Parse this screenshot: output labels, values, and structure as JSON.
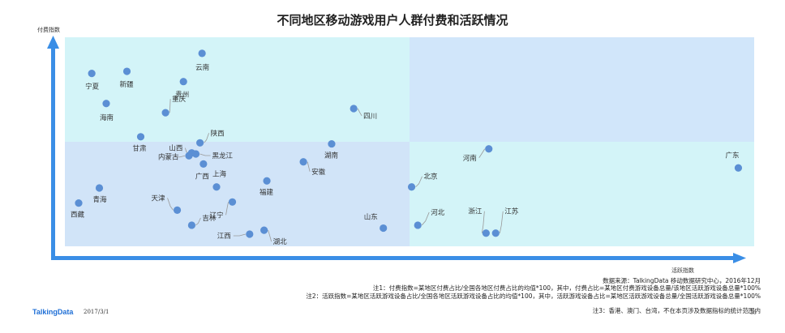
{
  "chart_data": {
    "type": "scatter",
    "title": "不同地区移动游戏用户人群付费和活跃情况",
    "xlabel": "活跃指数",
    "ylabel": "付费指数",
    "xlim": [
      0,
      100
    ],
    "ylim": [
      0,
      100
    ],
    "quadrant_split": {
      "x": 50,
      "y": 50
    },
    "quadrant_colors": {
      "top_left": "#d3f4f8",
      "top_right": "#d1e6fa",
      "bottom_left": "#d1e4f8",
      "bottom_right": "#d3f4f8"
    },
    "grid": false,
    "legend": "none",
    "point_color": "#5b8fd4",
    "axis_color": "#3a8ee6",
    "points": [
      {
        "label": "云南",
        "x": 19.9,
        "y": 92.3
      },
      {
        "label": "宁夏",
        "x": 3.9,
        "y": 82.7
      },
      {
        "label": "新疆",
        "x": 9.0,
        "y": 83.7
      },
      {
        "label": "贵州",
        "x": 17.2,
        "y": 78.8
      },
      {
        "label": "海南",
        "x": 6.0,
        "y": 68.3
      },
      {
        "label": "重庆",
        "x": 14.6,
        "y": 63.9
      },
      {
        "label": "四川",
        "x": 41.9,
        "y": 65.9
      },
      {
        "label": "甘肃",
        "x": 11.0,
        "y": 52.4
      },
      {
        "label": "陕西",
        "x": 19.6,
        "y": 49.5
      },
      {
        "label": "山西",
        "x": 18.4,
        "y": 44.7
      },
      {
        "label": "内蒙古",
        "x": 18.0,
        "y": 43.3
      },
      {
        "label": "黑龙江",
        "x": 19.0,
        "y": 44.2
      },
      {
        "label": "湖南",
        "x": 38.7,
        "y": 49.0
      },
      {
        "label": "河南",
        "x": 61.5,
        "y": 46.6
      },
      {
        "label": "广东",
        "x": 97.7,
        "y": 37.5
      },
      {
        "label": "广西",
        "x": 20.1,
        "y": 39.4
      },
      {
        "label": "安徽",
        "x": 34.6,
        "y": 40.4
      },
      {
        "label": "北京",
        "x": 50.3,
        "y": 28.4
      },
      {
        "label": "福建",
        "x": 29.3,
        "y": 31.3
      },
      {
        "label": "青海",
        "x": 5.0,
        "y": 27.9
      },
      {
        "label": "西藏",
        "x": 2.0,
        "y": 20.7
      },
      {
        "label": "上海",
        "x": 22.0,
        "y": 28.4
      },
      {
        "label": "辽宁",
        "x": 24.3,
        "y": 21.2
      },
      {
        "label": "天津",
        "x": 16.3,
        "y": 17.3
      },
      {
        "label": "吉林",
        "x": 18.4,
        "y": 10.1
      },
      {
        "label": "山东",
        "x": 46.2,
        "y": 8.7
      },
      {
        "label": "河北",
        "x": 51.2,
        "y": 10.1
      },
      {
        "label": "浙江",
        "x": 61.1,
        "y": 6.3
      },
      {
        "label": "江苏",
        "x": 62.5,
        "y": 6.3
      },
      {
        "label": "江西",
        "x": 26.8,
        "y": 5.8
      },
      {
        "label": "湖北",
        "x": 28.9,
        "y": 7.7
      }
    ]
  },
  "source_lines": [
    "数据来源：TalkingData 移动数据研究中心，2016年12月",
    "注1：付费指数=某地区付费占比/全国各地区付费占比的均值*100，其中，付费占比=某地区付费游戏设备总量/该地区活跃游戏设备总量*100%",
    "注2：活跃指数=某地区活跃游戏设备占比/全国各地区活跃游戏设备占比的均值*100，其中，活跃游戏设备占比=某地区活跃游戏设备总量/全国活跃游戏设备总量*100%",
    "注3：香港、澳门、台湾，不在本页涉及数据指标的统计范围内"
  ],
  "footer": {
    "brand": "TalkingData",
    "date": "2017/3/1",
    "page_number": "35"
  }
}
